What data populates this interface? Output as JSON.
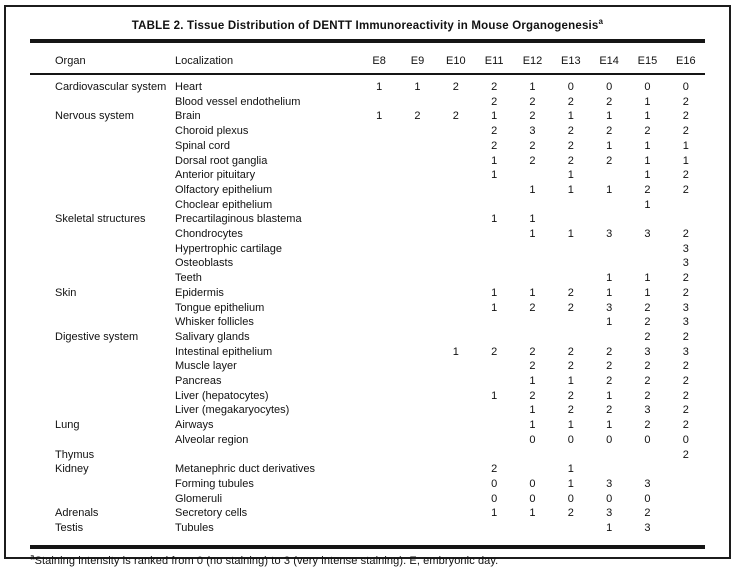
{
  "table": {
    "title": "TABLE 2. Tissue Distribution of DENTT Immunoreactivity in Mouse Organogenesis",
    "title_superscript": "a",
    "columns": [
      "Organ",
      "Localization",
      "E8",
      "E9",
      "E10",
      "E11",
      "E12",
      "E13",
      "E14",
      "E15",
      "E16"
    ],
    "rows": [
      {
        "organ": "Cardiovascular system",
        "localization": "Heart",
        "values": [
          "1",
          "1",
          "2",
          "2",
          "1",
          "0",
          "0",
          "0",
          "0"
        ]
      },
      {
        "organ": "",
        "localization": "Blood vessel endothelium",
        "values": [
          "",
          "",
          "",
          "2",
          "2",
          "2",
          "2",
          "1",
          "2"
        ]
      },
      {
        "organ": "Nervous system",
        "localization": "Brain",
        "values": [
          "1",
          "2",
          "2",
          "1",
          "2",
          "1",
          "1",
          "1",
          "2"
        ]
      },
      {
        "organ": "",
        "localization": "Choroid plexus",
        "values": [
          "",
          "",
          "",
          "2",
          "3",
          "2",
          "2",
          "2",
          "2"
        ]
      },
      {
        "organ": "",
        "localization": "Spinal cord",
        "values": [
          "",
          "",
          "",
          "2",
          "2",
          "2",
          "1",
          "1",
          "1"
        ]
      },
      {
        "organ": "",
        "localization": "Dorsal root ganglia",
        "values": [
          "",
          "",
          "",
          "1",
          "2",
          "2",
          "2",
          "1",
          "1"
        ]
      },
      {
        "organ": "",
        "localization": "Anterior pituitary",
        "values": [
          "",
          "",
          "",
          "1",
          "",
          "1",
          "",
          "1",
          "2"
        ]
      },
      {
        "organ": "",
        "localization": "Olfactory epithelium",
        "values": [
          "",
          "",
          "",
          "",
          "1",
          "1",
          "1",
          "2",
          "2"
        ]
      },
      {
        "organ": "",
        "localization": "Choclear epithelium",
        "values": [
          "",
          "",
          "",
          "",
          "",
          "",
          "",
          "1",
          ""
        ]
      },
      {
        "organ": "Skeletal structures",
        "localization": "Precartilaginous blastema",
        "values": [
          "",
          "",
          "",
          "1",
          "1",
          "",
          "",
          "",
          ""
        ]
      },
      {
        "organ": "",
        "localization": "Chondrocytes",
        "values": [
          "",
          "",
          "",
          "",
          "1",
          "1",
          "3",
          "3",
          "2"
        ]
      },
      {
        "organ": "",
        "localization": "Hypertrophic cartilage",
        "values": [
          "",
          "",
          "",
          "",
          "",
          "",
          "",
          "",
          "3"
        ]
      },
      {
        "organ": "",
        "localization": "Osteoblasts",
        "values": [
          "",
          "",
          "",
          "",
          "",
          "",
          "",
          "",
          "3"
        ]
      },
      {
        "organ": "",
        "localization": "Teeth",
        "values": [
          "",
          "",
          "",
          "",
          "",
          "",
          "1",
          "1",
          "2"
        ]
      },
      {
        "organ": "Skin",
        "localization": "Epidermis",
        "values": [
          "",
          "",
          "",
          "1",
          "1",
          "2",
          "1",
          "1",
          "2"
        ]
      },
      {
        "organ": "",
        "localization": "Tongue epithelium",
        "values": [
          "",
          "",
          "",
          "1",
          "2",
          "2",
          "3",
          "2",
          "3"
        ]
      },
      {
        "organ": "",
        "localization": "Whisker follicles",
        "values": [
          "",
          "",
          "",
          "",
          "",
          "",
          "1",
          "2",
          "3"
        ]
      },
      {
        "organ": "Digestive system",
        "localization": "Salivary glands",
        "values": [
          "",
          "",
          "",
          "",
          "",
          "",
          "",
          "2",
          "2"
        ]
      },
      {
        "organ": "",
        "localization": "Intestinal epithelium",
        "values": [
          "",
          "",
          "1",
          "2",
          "2",
          "2",
          "2",
          "3",
          "3"
        ]
      },
      {
        "organ": "",
        "localization": "Muscle layer",
        "values": [
          "",
          "",
          "",
          "",
          "2",
          "2",
          "2",
          "2",
          "2"
        ]
      },
      {
        "organ": "",
        "localization": "Pancreas",
        "values": [
          "",
          "",
          "",
          "",
          "1",
          "1",
          "2",
          "2",
          "2"
        ]
      },
      {
        "organ": "",
        "localization": "Liver (hepatocytes)",
        "values": [
          "",
          "",
          "",
          "1",
          "2",
          "2",
          "1",
          "2",
          "2"
        ]
      },
      {
        "organ": "",
        "localization": "Liver (megakaryocytes)",
        "values": [
          "",
          "",
          "",
          "",
          "1",
          "2",
          "2",
          "3",
          "2"
        ]
      },
      {
        "organ": "Lung",
        "localization": "Airways",
        "values": [
          "",
          "",
          "",
          "",
          "1",
          "1",
          "1",
          "2",
          "2"
        ]
      },
      {
        "organ": "",
        "localization": "Alveolar region",
        "values": [
          "",
          "",
          "",
          "",
          "0",
          "0",
          "0",
          "0",
          "0"
        ]
      },
      {
        "organ": "Thymus",
        "localization": "",
        "values": [
          "",
          "",
          "",
          "",
          "",
          "",
          "",
          "",
          "2"
        ]
      },
      {
        "organ": "Kidney",
        "localization": "Metanephric duct derivatives",
        "values": [
          "",
          "",
          "",
          "2",
          "",
          "1",
          "",
          "",
          ""
        ]
      },
      {
        "organ": "",
        "localization": "Forming tubules",
        "values": [
          "",
          "",
          "",
          "0",
          "0",
          "1",
          "3",
          "3",
          ""
        ]
      },
      {
        "organ": "",
        "localization": "Glomeruli",
        "values": [
          "",
          "",
          "",
          "0",
          "0",
          "0",
          "0",
          "0",
          ""
        ]
      },
      {
        "organ": "Adrenals",
        "localization": "Secretory cells",
        "values": [
          "",
          "",
          "",
          "1",
          "1",
          "2",
          "3",
          "2",
          ""
        ]
      },
      {
        "organ": "Testis",
        "localization": "Tubules",
        "values": [
          "",
          "",
          "",
          "",
          "",
          "",
          "1",
          "3",
          ""
        ]
      }
    ],
    "footnote_superscript": "a",
    "footnote": "Staining intensity is ranked from 0 (no staining) to 3 (very intense staining). E, embryonic day."
  }
}
